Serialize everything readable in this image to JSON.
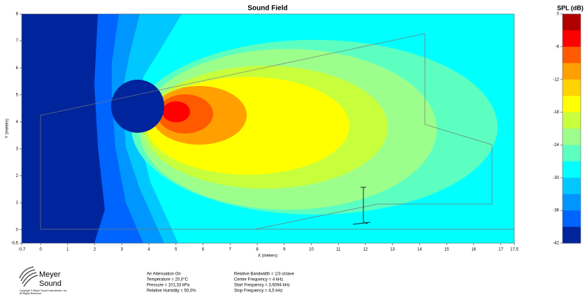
{
  "chart_data": {
    "type": "heatmap",
    "title": "Sound Field",
    "xlabel": "X (meters)",
    "ylabel": "Y (meters)",
    "xlim": [
      -0.7,
      17.5
    ],
    "ylim": [
      -0.5,
      8
    ],
    "xticks": [
      {
        "value": -0.7,
        "label": "-0,7"
      },
      0,
      1,
      2,
      3,
      4,
      5,
      6,
      7,
      8,
      9,
      10,
      11,
      12,
      13,
      14,
      15,
      16,
      17,
      {
        "value": 17.5,
        "label": "17,5"
      }
    ],
    "yticks": [
      {
        "value": -0.5,
        "label": "-0,5"
      },
      0,
      1,
      2,
      3,
      4,
      5,
      6,
      7,
      8
    ],
    "colorbar": {
      "title": "SPL (dB)",
      "lim": [
        0,
        -42
      ],
      "ticks": [
        0,
        -6,
        -12,
        -18,
        -24,
        -30,
        -36,
        -42
      ],
      "colors": [
        "#b00000",
        "#ff0000",
        "#ff5a00",
        "#ffa000",
        "#ffd200",
        "#ffff00",
        "#c8ff3c",
        "#9cff8c",
        "#5cffc0",
        "#00ffff",
        "#00c8ff",
        "#0096ff",
        "#0064ff",
        "#00249c"
      ]
    }
  },
  "footer": {
    "logo": [
      "Meyer",
      "Sound"
    ],
    "copyright": [
      "Copyright © Meyer Sound Laboratories, Inc.",
      "All Rights Reserved"
    ],
    "settings": [
      "Air Attenuation On",
      "Temperature = 20,0°C",
      "Pressure = 101,33  kPa",
      "Relative Humidity = 50,0%"
    ],
    "frequency": [
      "Relative Bandwidth = 1/3 octave",
      "Center Frequency = 4  kHz",
      "Start Frequency = 3,6094 kHz",
      "Stop Frequency = 4,5 kHz"
    ]
  }
}
